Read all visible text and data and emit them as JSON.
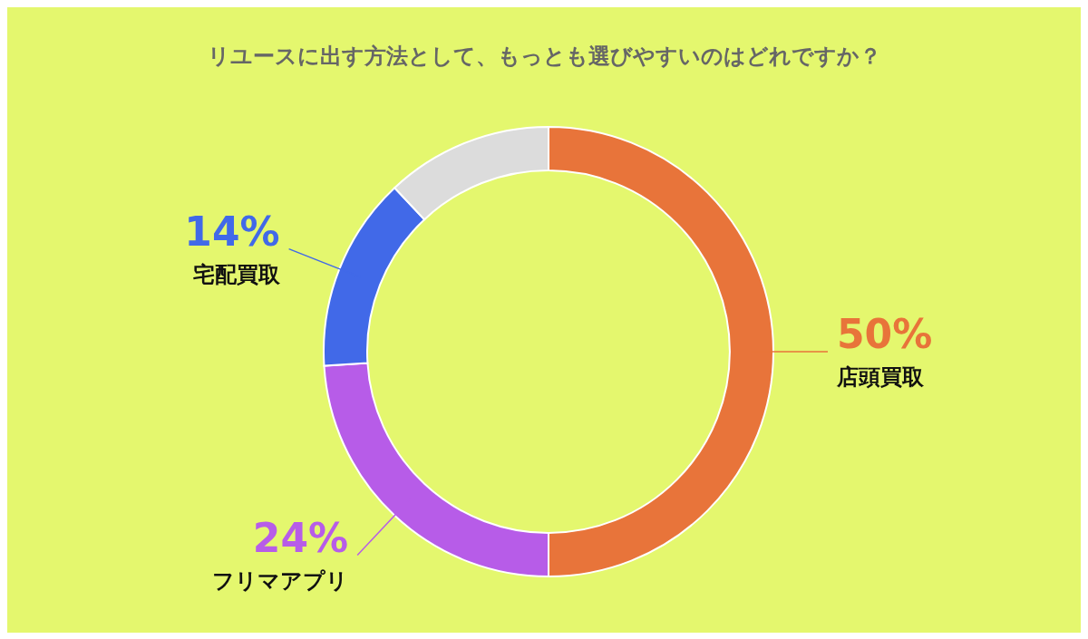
{
  "chart_data": {
    "type": "donut",
    "title": "リユースに出す方法として、もっとも選びやすいのはどれですか？",
    "categories": [
      "店頭買取",
      "フリマアプリ",
      "宅配買取",
      null
    ],
    "values": [
      50,
      24,
      14,
      12
    ],
    "value_labels": [
      "50%",
      "24%",
      "14%",
      null
    ],
    "colors": [
      "#e8743a",
      "#b75ce8",
      "#4169e8",
      "#dcdcdc"
    ],
    "legend": false
  }
}
